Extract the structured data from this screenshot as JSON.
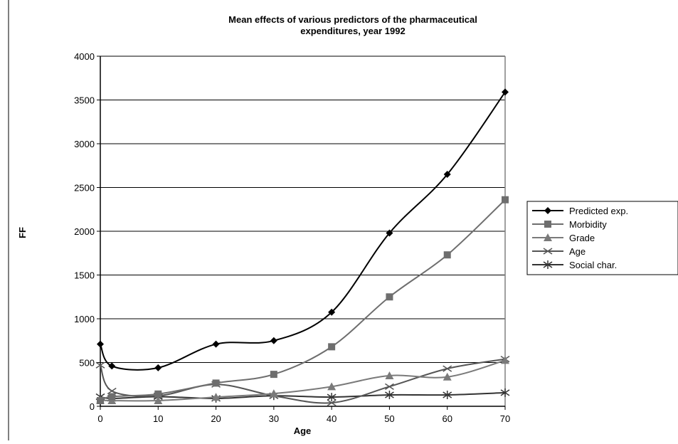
{
  "chart_data": {
    "type": "line",
    "title_lines": [
      "Mean effects of various predictors of the pharmaceutical",
      "expenditures, year 1992"
    ],
    "xlabel": "Age",
    "ylabel": "FF",
    "xlim": [
      0,
      70
    ],
    "ylim": [
      0,
      4000
    ],
    "x_ticks": [
      0,
      10,
      20,
      30,
      40,
      50,
      60,
      70
    ],
    "y_ticks": [
      0,
      500,
      1000,
      1500,
      2000,
      2500,
      3000,
      3500,
      4000
    ],
    "grid": true,
    "legend_position": "right",
    "x": [
      0,
      2,
      10,
      20,
      30,
      40,
      50,
      60,
      70
    ],
    "series": [
      {
        "name": "Predicted exp.",
        "marker": "diamond",
        "color": "#000000",
        "values": [
          710,
          460,
          440,
          710,
          750,
          1075,
          1980,
          2650,
          3590
        ]
      },
      {
        "name": "Morbidity",
        "marker": "square",
        "color": "#6e6e6e",
        "values": [
          65,
          110,
          140,
          265,
          365,
          680,
          1250,
          1730,
          2360
        ]
      },
      {
        "name": "Grade",
        "marker": "triangle",
        "color": "#7a7a7a",
        "values": [
          70,
          65,
          65,
          105,
          145,
          225,
          350,
          335,
          525
        ]
      },
      {
        "name": "Age",
        "marker": "x",
        "color": "#555555",
        "values": [
          470,
          175,
          120,
          250,
          120,
          40,
          225,
          430,
          540
        ]
      },
      {
        "name": "Social char.",
        "marker": "asterisk",
        "color": "#333333",
        "values": [
          110,
          90,
          110,
          90,
          120,
          105,
          130,
          130,
          155
        ]
      }
    ]
  }
}
